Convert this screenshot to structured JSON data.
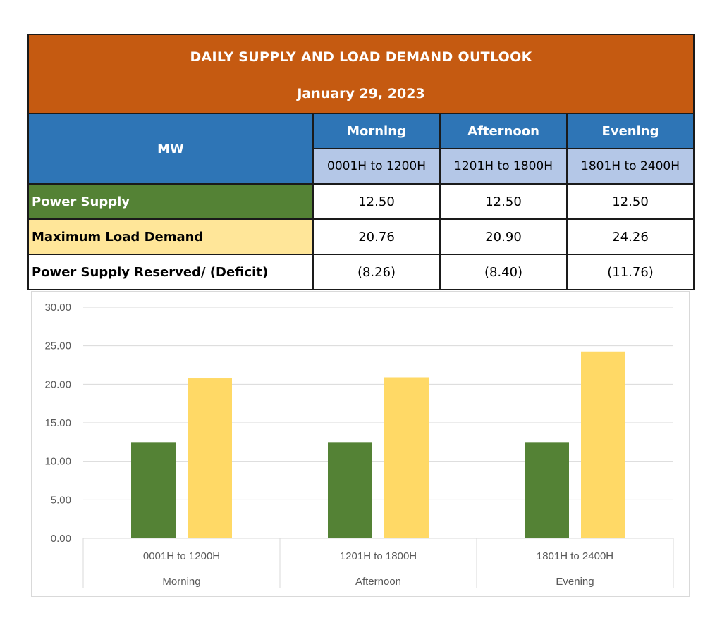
{
  "table": {
    "title": "DAILY SUPPLY AND LOAD DEMAND OUTLOOK",
    "date": "January 29, 2023",
    "unit_label": "MW",
    "periods": [
      {
        "name": "Morning",
        "range": "0001H to 1200H"
      },
      {
        "name": "Afternoon",
        "range": "1201H to 1800H"
      },
      {
        "name": "Evening",
        "range": "1801H to 2400H"
      }
    ],
    "rows": [
      {
        "label": "Power Supply",
        "values": [
          "12.50",
          "12.50",
          "12.50"
        ]
      },
      {
        "label": "Maximum Load Demand",
        "values": [
          "20.76",
          "20.90",
          "24.26"
        ]
      },
      {
        "label": "Power Supply Reserved/ (Deficit)",
        "values": [
          "(8.26)",
          "(8.40)",
          "(11.76)"
        ]
      }
    ]
  },
  "colors": {
    "title_bg": "#c55a11",
    "header_bg": "#2e75b6",
    "subheader_bg": "#b4c7e7",
    "supply": "#548235",
    "demand": "#ffd966",
    "demand_label_bg": "#ffe699"
  },
  "chart_data": {
    "type": "bar",
    "categories": [
      {
        "range": "0001H to 1200H",
        "name": "Morning"
      },
      {
        "range": "1201H to 1800H",
        "name": "Afternoon"
      },
      {
        "range": "1801H to 2400H",
        "name": "Evening"
      }
    ],
    "series": [
      {
        "values": [
          12.5,
          12.5,
          12.5
        ],
        "color": "#548235"
      },
      {
        "values": [
          20.76,
          20.9,
          24.26
        ],
        "color": "#ffd966"
      }
    ],
    "ylim": [
      0,
      30
    ],
    "yticks": [
      "0.00",
      "5.00",
      "10.00",
      "15.00",
      "20.00",
      "25.00",
      "30.00"
    ],
    "grid": true,
    "legend": "none"
  }
}
